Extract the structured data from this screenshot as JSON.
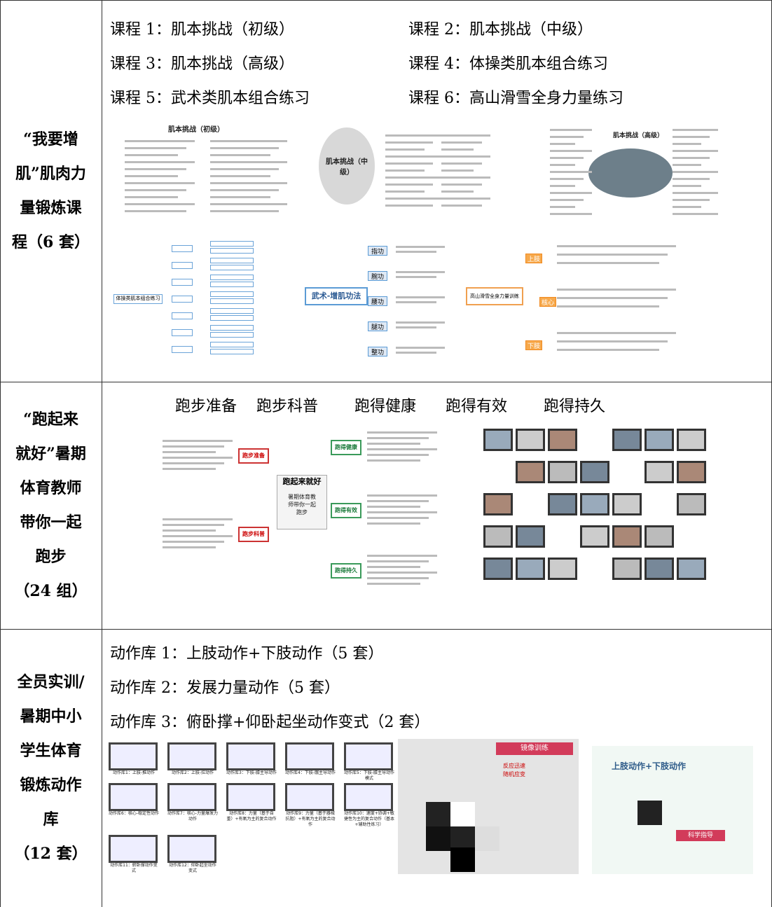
{
  "rows": [
    {
      "label": [
        "“我要增",
        "肌”肌肉力",
        "量锻炼课",
        "程（6 套）"
      ],
      "courses": [
        "课程 1：肌本挑战（初级）",
        "课程 2：肌本挑战（中级）",
        "课程 3：肌本挑战（高级）",
        "课程 4：体操类肌本组合练习",
        "课程 5：武术类肌本组合练习",
        "课程 6：高山滑雪全身力量练习"
      ],
      "thumbnails": [
        "肌本挑战（初级）",
        "肌本挑战（中级）",
        "肌本挑战（高级）"
      ],
      "mindmaps": [
        {
          "root": "体操类肌本组合练习"
        },
        {
          "root": "武术-增肌功法",
          "branches": [
            "指功",
            "腕功",
            "腰功",
            "腿功",
            "整功"
          ]
        },
        {
          "root": "高山滑雪全身力量训练",
          "branches": [
            "上肢",
            "核心",
            "下肢"
          ]
        }
      ]
    },
    {
      "label": [
        "“跑起来",
        "就好”暑期",
        "体育教师",
        "带你一起",
        "跑步",
        "（24 组）"
      ],
      "topics": [
        "跑步准备",
        "跑步科普",
        "跑得健康",
        "跑得有效",
        "跑得持久"
      ],
      "mindmap": {
        "root": "跑起来就好",
        "subtitle": "暑期体育教师带你一起跑步",
        "branches": [
          "跑步准备",
          "跑步科普",
          "跑得健康",
          "跑得有效",
          "跑得持久"
        ]
      }
    },
    {
      "label": [
        "全员实训/",
        "暑期中小",
        "学生体育",
        "锻炼动作",
        "库",
        "（12 套）"
      ],
      "libraries": [
        "动作库 1：上肢动作+下肢动作（5 套）",
        "动作库 2：发展力量动作（5 套）",
        "动作库 3：俯卧撑+仰卧起坐动作变式（2 套）"
      ],
      "videos": [
        "动作库1：上肢-推动作",
        "动作库2：上肢-拉动作",
        "动作库3：下肢-膝主导动作",
        "动作库4：下肢-髋主导动作",
        "动作库5：下肢-膝主导动作模式",
        "动作库6：核心-稳定性动作",
        "动作库7：核心-力量爆发力动作",
        "动作库8：力量（基于自重）+有氧为主的复合动作",
        "动作库9：力量（基于器械抗阻）+有氧为主的复合动作",
        "动作库10：速度+协调+敏捷性为主的复合动作（基本+辅助性练习）",
        "动作库11：俯卧撑动作变式",
        "动作库12：仰卧起坐动作变式"
      ],
      "screenshots": [
        {
          "banner": "镜像训练",
          "points": [
            "反应迅速",
            "随机应变"
          ]
        },
        {
          "title": "上肢动作+下肢动作",
          "tag": "科学指导"
        }
      ]
    }
  ]
}
